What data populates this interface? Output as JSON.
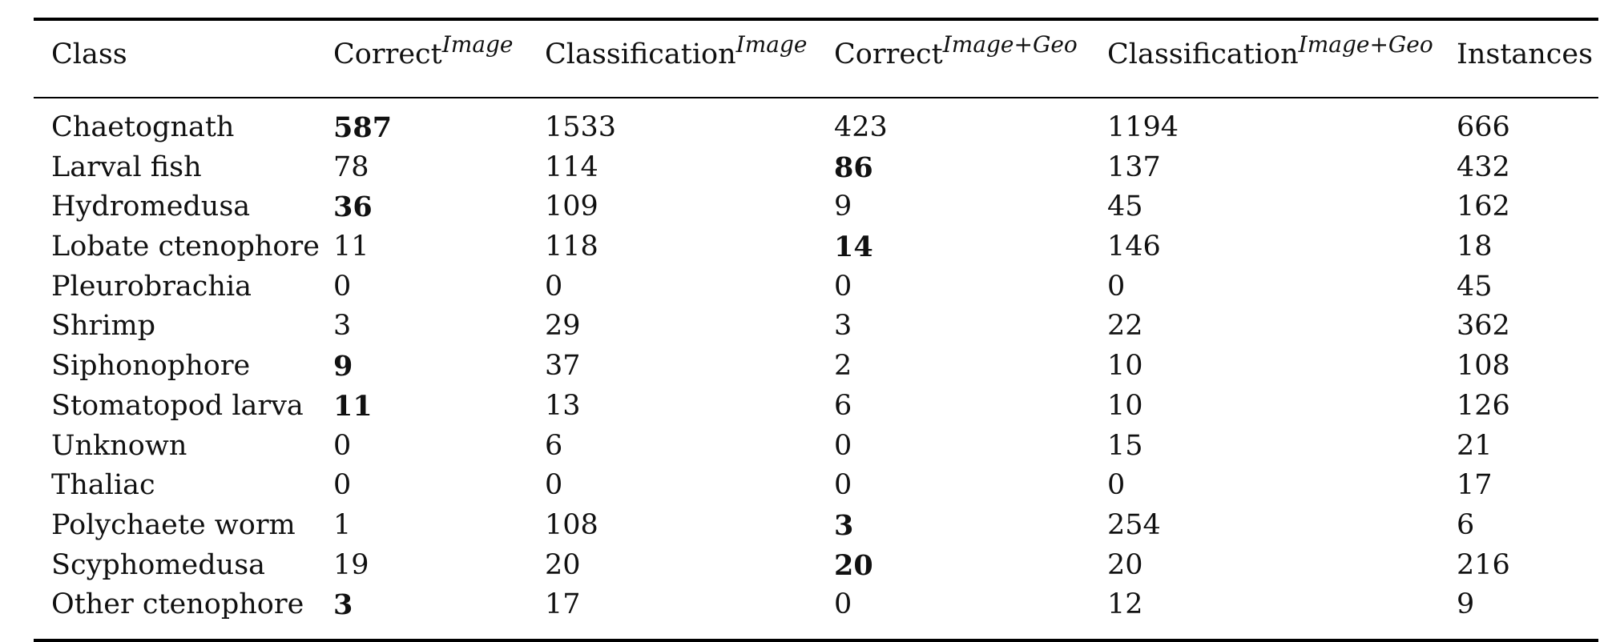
{
  "table": {
    "headers": [
      {
        "base": "Class",
        "sup": ""
      },
      {
        "base": "Correct",
        "sup": "Image"
      },
      {
        "base": "Classification",
        "sup": "Image"
      },
      {
        "base": "Correct",
        "sup": "Image+Geo"
      },
      {
        "base": "Classification",
        "sup": "Image+Geo"
      },
      {
        "base": "Instances",
        "sup": ""
      }
    ],
    "rows": [
      {
        "cells": [
          "Chaetognath",
          "587",
          "1533",
          "423",
          "1194",
          "666"
        ],
        "bold": [
          1
        ]
      },
      {
        "cells": [
          "Larval fish",
          "78",
          "114",
          "86",
          "137",
          "432"
        ],
        "bold": [
          3
        ]
      },
      {
        "cells": [
          "Hydromedusa",
          "36",
          "109",
          "9",
          "45",
          "162"
        ],
        "bold": [
          1
        ]
      },
      {
        "cells": [
          "Lobate ctenophore",
          "11",
          "118",
          "14",
          "146",
          "18"
        ],
        "bold": [
          3
        ]
      },
      {
        "cells": [
          "Pleurobrachia",
          "0",
          "0",
          "0",
          "0",
          "45"
        ],
        "bold": []
      },
      {
        "cells": [
          "Shrimp",
          "3",
          "29",
          "3",
          "22",
          "362"
        ],
        "bold": []
      },
      {
        "cells": [
          "Siphonophore",
          "9",
          "37",
          "2",
          "10",
          "108"
        ],
        "bold": [
          1
        ]
      },
      {
        "cells": [
          "Stomatopod larva",
          "11",
          "13",
          "6",
          "10",
          "126"
        ],
        "bold": [
          1
        ]
      },
      {
        "cells": [
          "Unknown",
          "0",
          "6",
          "0",
          "15",
          "21"
        ],
        "bold": []
      },
      {
        "cells": [
          "Thaliac",
          "0",
          "0",
          "0",
          "0",
          "17"
        ],
        "bold": []
      },
      {
        "cells": [
          "Polychaete worm",
          "1",
          "108",
          "3",
          "254",
          "6"
        ],
        "bold": [
          3
        ]
      },
      {
        "cells": [
          "Scyphomedusa",
          "19",
          "20",
          "20",
          "20",
          "216"
        ],
        "bold": [
          3
        ]
      },
      {
        "cells": [
          "Other ctenophore",
          "3",
          "17",
          "0",
          "12",
          "9"
        ],
        "bold": [
          1
        ]
      }
    ]
  }
}
